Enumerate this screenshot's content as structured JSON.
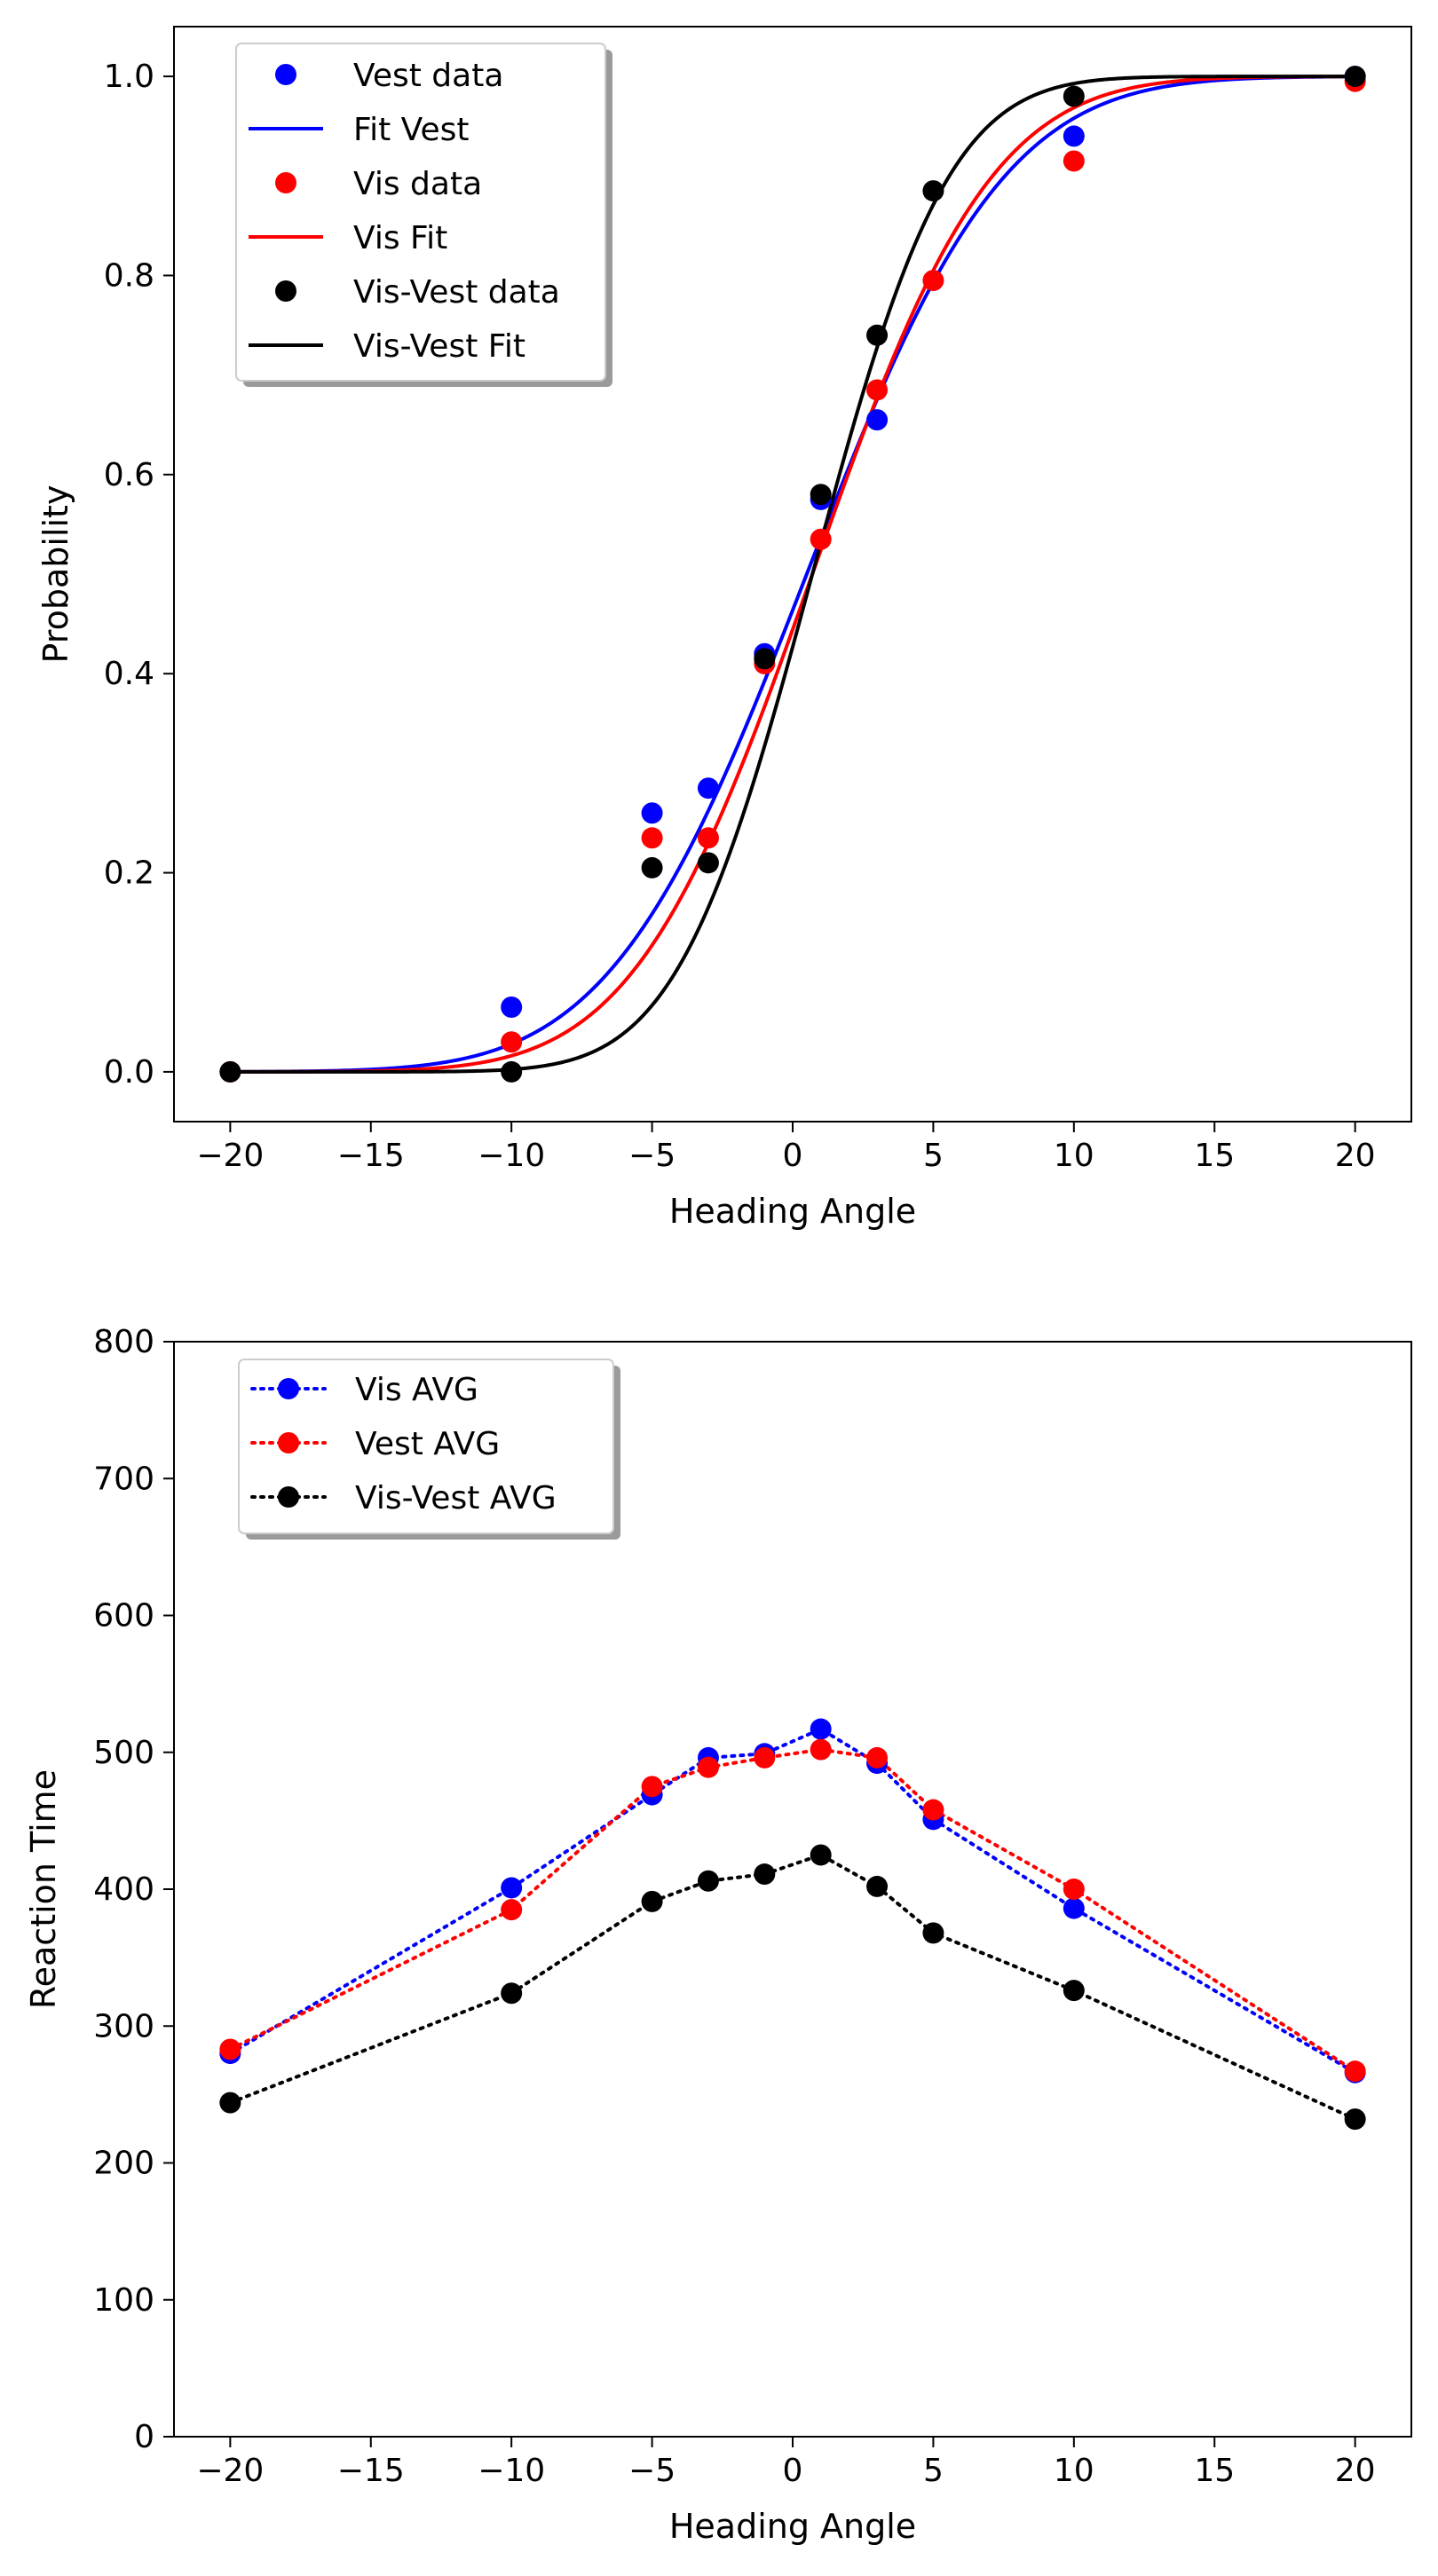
{
  "chart_data": [
    {
      "type": "line",
      "title": "",
      "xlabel": "Heading Angle",
      "ylabel": "Probability",
      "xlim": [
        -22,
        22
      ],
      "ylim": [
        -0.05,
        1.05
      ],
      "xticks": [
        -20,
        -15,
        -10,
        -5,
        0,
        5,
        10,
        15,
        20
      ],
      "xtick_labels": [
        "−20",
        "−15",
        "−10",
        "−5",
        "0",
        "5",
        "10",
        "15",
        "20"
      ],
      "yticks": [
        0.0,
        0.2,
        0.4,
        0.6,
        0.8,
        1.0
      ],
      "ytick_labels": [
        "0.0",
        "0.2",
        "0.4",
        "0.6",
        "0.8",
        "1.0"
      ],
      "grid": false,
      "legend_position": "top-left",
      "legend": [
        "Vest data",
        "Fit Vest",
        "Vis data",
        "Vis Fit",
        "Vis-Vest data",
        "Vis-Vest Fit"
      ],
      "series": [
        {
          "name": "Vest data",
          "kind": "scatter",
          "color": "#0000ff",
          "x": [
            -20,
            -10,
            -5,
            -3,
            -1,
            1,
            3,
            10,
            20
          ],
          "y": [
            0.0,
            0.065,
            0.26,
            0.285,
            0.42,
            0.575,
            0.655,
            0.94,
            1.0
          ]
        },
        {
          "name": "Vis data",
          "kind": "scatter",
          "color": "#ff0000",
          "x": [
            -20,
            -10,
            -5,
            -3,
            -1,
            1,
            3,
            5,
            10,
            20
          ],
          "y": [
            0.0,
            0.03,
            0.235,
            0.235,
            0.41,
            0.535,
            0.685,
            0.795,
            0.915,
            0.995
          ]
        },
        {
          "name": "Vis-Vest data",
          "kind": "scatter",
          "color": "#000000",
          "x": [
            -20,
            -10,
            -5,
            -3,
            -1,
            1,
            3,
            5,
            10,
            20
          ],
          "y": [
            0.0,
            0.0,
            0.205,
            0.21,
            0.415,
            0.58,
            0.74,
            0.885,
            0.98,
            1.0
          ]
        },
        {
          "name": "Fit Vest",
          "kind": "curve",
          "color": "#0000ff",
          "mu": 0.5,
          "sigma": 5.5,
          "x": [
            -20,
            -15,
            -10,
            -5,
            -3,
            -1,
            0,
            1,
            3,
            5,
            10,
            15,
            20
          ],
          "y": [
            0.0001,
            0.0024,
            0.028,
            0.159,
            0.263,
            0.392,
            0.464,
            0.536,
            0.671,
            0.793,
            0.937,
            0.99,
            0.999
          ]
        },
        {
          "name": "Vis Fit",
          "kind": "curve",
          "color": "#ff0000",
          "mu": 0.7,
          "sigma": 5.0,
          "x": [
            -20,
            -15,
            -10,
            -5,
            -3,
            -1,
            0,
            1,
            3,
            5,
            10,
            15,
            20
          ],
          "y": [
            0.0,
            0.0008,
            0.016,
            0.127,
            0.229,
            0.366,
            0.444,
            0.524,
            0.673,
            0.799,
            0.953,
            0.996,
            1.0
          ]
        },
        {
          "name": "Vis-Vest Fit",
          "kind": "curve",
          "color": "#000000",
          "mu": 0.7,
          "sigma": 3.8,
          "x": [
            -20,
            -15,
            -10,
            -5,
            -3,
            -1,
            0,
            1,
            3,
            5,
            10,
            15,
            20
          ],
          "y": [
            0.0,
            0.0,
            0.0025,
            0.067,
            0.165,
            0.327,
            0.427,
            0.531,
            0.721,
            0.866,
            0.993,
            1.0,
            1.0
          ]
        }
      ]
    },
    {
      "type": "line",
      "title": "",
      "xlabel": "Heading Angle",
      "ylabel": "Reaction Time",
      "xlim": [
        -22,
        22
      ],
      "ylim": [
        0,
        800
      ],
      "xticks": [
        -20,
        -15,
        -10,
        -5,
        0,
        5,
        10,
        15,
        20
      ],
      "xtick_labels": [
        "−20",
        "−15",
        "−10",
        "−5",
        "0",
        "5",
        "10",
        "15",
        "20"
      ],
      "yticks": [
        0,
        100,
        200,
        300,
        400,
        500,
        600,
        700,
        800
      ],
      "ytick_labels": [
        "0",
        "100",
        "200",
        "300",
        "400",
        "500",
        "600",
        "700",
        "800"
      ],
      "grid": false,
      "legend_position": "top-left",
      "legend": [
        "Vis AVG",
        "Vest AVG",
        "Vis-Vest AVG"
      ],
      "x": [
        -20,
        -10,
        -5,
        -3,
        -1,
        1,
        3,
        5,
        10,
        20
      ],
      "series": [
        {
          "name": "Vis AVG",
          "color": "#0000ff",
          "y": [
            280,
            401,
            469,
            496,
            499,
            517,
            492,
            451,
            386,
            266
          ]
        },
        {
          "name": "Vest AVG",
          "color": "#ff0000",
          "y": [
            283,
            385,
            475,
            489,
            496,
            502,
            496,
            458,
            400,
            267
          ]
        },
        {
          "name": "Vis-Vest AVG",
          "color": "#000000",
          "y": [
            244,
            324,
            391,
            406,
            411,
            425,
            402,
            368,
            326,
            232
          ]
        }
      ]
    }
  ]
}
